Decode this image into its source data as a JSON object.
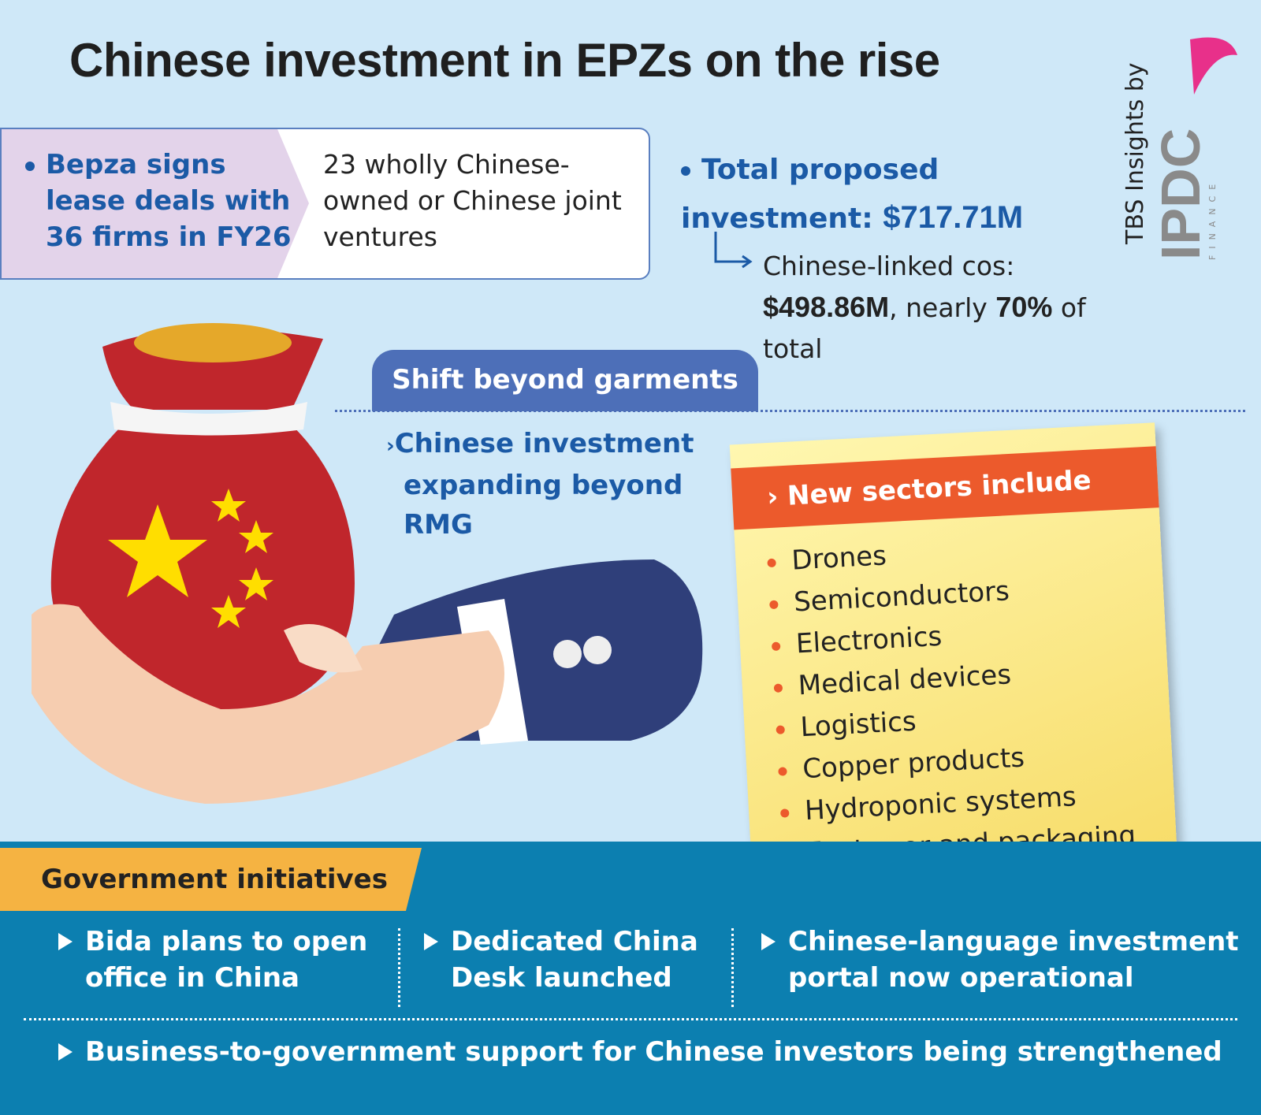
{
  "header": {
    "title": "Chinese investment in EPZs on the rise",
    "brand": {
      "byline": "TBS Insights by",
      "logo": "IPDC",
      "logo_sub": "FINANCE"
    }
  },
  "lease": {
    "label": "Bepza signs lease deals with 36 firms in FY26",
    "detail": "23 wholly Chinese-owned or Chinese joint ventures"
  },
  "investment": {
    "label": "Total proposed investment:",
    "total": "$717.71M",
    "linked_label": "Chinese-linked cos:",
    "linked_amount": "$498.86M",
    "linked_mid": ", nearly",
    "linked_share": "70%",
    "linked_end": "of total"
  },
  "shift": {
    "title": "Shift beyond garments",
    "text": "Chinese investment expanding beyond RMG"
  },
  "sectors": {
    "title": "New sectors include",
    "items": [
      "Drones",
      "Semiconductors",
      "Electronics",
      "Medical devices",
      "Logistics",
      "Copper products",
      "Hydroponic systems",
      "Footwear and packaging"
    ]
  },
  "government": {
    "title": "Government initiatives",
    "items": [
      "Bida plans to open office in China",
      "Dedicated China Desk launched",
      "Chinese-language investment portal now operational",
      "Business-to-government support for Chinese investors being strengthened"
    ]
  }
}
